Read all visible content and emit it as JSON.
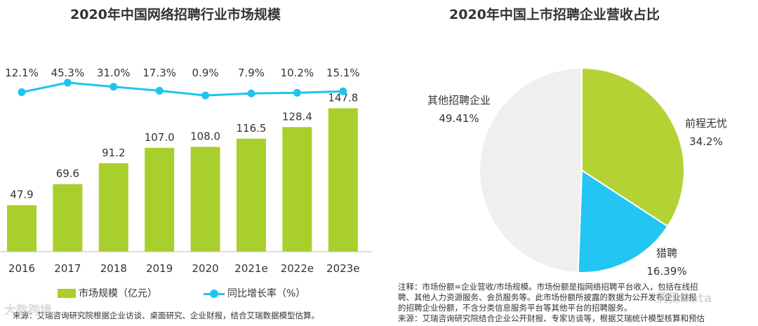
{
  "left_chart": {
    "title": "2020年中国网络招聘行业市场规模",
    "legend": {
      "bar": "市场规模（亿元）",
      "line": "同比增长率（%）"
    },
    "source": "来源：艾瑞咨询研究院根据企业访谈、桌面研究、企业财报，结合艾瑞数据模型估算。"
  },
  "right_chart": {
    "title": "2020年中国上市招聘企业营收占比",
    "notes": [
      "注释：市场份额=企业营收/市场规模。市场份额是指网络招聘平台收入，包括在线招",
      "聘、其他人力资源服务、会员服务等。此市场份额所披露的数据为公开发布企业财报",
      "的招聘企业份额，不含分类信息服务平台等其他平台的招聘服务。",
      "来源：艾瑞咨询研究院结合企业公开财报、专家访谈等，根据艾瑞统计模型核算和预估"
    ]
  },
  "watermarks": [
    "大数跨境",
    "洞见Data"
  ],
  "colors": {
    "bar": "#a8cf2b",
    "line": "#1ec4ee",
    "pie_other": "#efefef",
    "pie_51job": "#b3d335",
    "pie_liepin": "#23c6f2"
  },
  "chart_data": [
    {
      "type": "bar",
      "title": "2020年中国网络招聘行业市场规模",
      "categories": [
        "2016",
        "2017",
        "2018",
        "2019",
        "2020",
        "2021e",
        "2022e",
        "2023e"
      ],
      "series": [
        {
          "name": "市场规模（亿元）",
          "type": "bar",
          "values": [
            47.9,
            69.6,
            91.2,
            107.0,
            108.0,
            116.5,
            128.4,
            147.8
          ],
          "labels": [
            "47.9",
            "69.6",
            "91.2",
            "107.0",
            "108.0",
            "116.5",
            "128.4",
            "147.8"
          ]
        },
        {
          "name": "同比增长率（%）",
          "type": "line",
          "values": [
            12.1,
            45.3,
            31.0,
            17.3,
            0.9,
            7.9,
            10.2,
            15.1
          ],
          "labels": [
            "12.1%",
            "45.3%",
            "31.0%",
            "17.3%",
            "0.9%",
            "7.9%",
            "10.2%",
            "15.1%"
          ]
        }
      ],
      "xlabel": "",
      "ylabel": "",
      "ylim": [
        0,
        160
      ]
    },
    {
      "type": "pie",
      "title": "2020年中国上市招聘企业营收占比",
      "slices": [
        {
          "label": "前程无忧",
          "value": 34.2,
          "value_label": "34.2%",
          "color": "#b3d335"
        },
        {
          "label": "猎聘",
          "value": 16.39,
          "value_label": "16.39%",
          "color": "#23c6f2"
        },
        {
          "label": "其他招聘企业",
          "value": 49.41,
          "value_label": "49.41%",
          "color": "#efefef"
        }
      ]
    }
  ]
}
